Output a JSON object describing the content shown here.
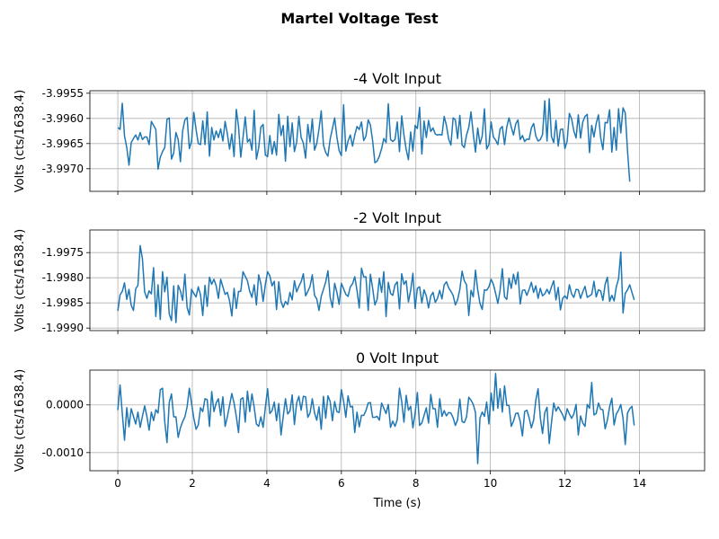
{
  "figure": {
    "suptitle": "Martel Voltage Test",
    "line_color": "#1f77b4",
    "grid_color": "#b0b0b0"
  },
  "chart_data": [
    {
      "type": "line",
      "title": "-4 Volt Input",
      "ylabel": "Volts (cts/1638.4)",
      "xlabel": "",
      "xlim": [
        -0.75,
        15.75
      ],
      "ylim": [
        -3.99745,
        -3.99545
      ],
      "xticks": [
        0,
        2,
        4,
        6,
        8,
        10,
        12,
        14
      ],
      "xtick_labels": [
        "",
        "",
        "",
        "",
        "",
        "",
        "",
        ""
      ],
      "yticks": [
        -3.9955,
        -3.996,
        -3.9965,
        -3.997
      ],
      "ytick_labels": [
        "-3.9955",
        "-3.9960",
        "-3.9965",
        "-3.9970"
      ],
      "grid": true,
      "x_start": 0,
      "x_step": 0.06,
      "values": [
        -3.99618,
        -3.99622,
        -3.9957,
        -3.99635,
        -3.99658,
        -3.99693,
        -3.99648,
        -3.9964,
        -3.99633,
        -3.99643,
        -3.99628,
        -3.99642,
        -3.99637,
        -3.99637,
        -3.99652,
        -3.99606,
        -3.99614,
        -3.99622,
        -3.99701,
        -3.99677,
        -3.99666,
        -3.99658,
        -3.99602,
        -3.99599,
        -3.99681,
        -3.99669,
        -3.99628,
        -3.99642,
        -3.99686,
        -3.99625,
        -3.99603,
        -3.99598,
        -3.9966,
        -3.99645,
        -3.99588,
        -3.99622,
        -3.9965,
        -3.99652,
        -3.99605,
        -3.99652,
        -3.99587,
        -3.99675,
        -3.99618,
        -3.99643,
        -3.99625,
        -3.99638,
        -3.99621,
        -3.99645,
        -3.99606,
        -3.99631,
        -3.99661,
        -3.99631,
        -3.99676,
        -3.99582,
        -3.99616,
        -3.99677,
        -3.99638,
        -3.99597,
        -3.99647,
        -3.99641,
        -3.99663,
        -3.99584,
        -3.99681,
        -3.99659,
        -3.99617,
        -3.99612,
        -3.99673,
        -3.99676,
        -3.99634,
        -3.99671,
        -3.99646,
        -3.99673,
        -3.99592,
        -3.99634,
        -3.99614,
        -3.99685,
        -3.99596,
        -3.99656,
        -3.99609,
        -3.99666,
        -3.99647,
        -3.99596,
        -3.99638,
        -3.99649,
        -3.99679,
        -3.99612,
        -3.99647,
        -3.99601,
        -3.99663,
        -3.9965,
        -3.99621,
        -3.99585,
        -3.99653,
        -3.99668,
        -3.99675,
        -3.99641,
        -3.9962,
        -3.99599,
        -3.99637,
        -3.99664,
        -3.99674,
        -3.99573,
        -3.99665,
        -3.99645,
        -3.99633,
        -3.99655,
        -3.99633,
        -3.99616,
        -3.99622,
        -3.99607,
        -3.99644,
        -3.99635,
        -3.99603,
        -3.99613,
        -3.99645,
        -3.99688,
        -3.99685,
        -3.99675,
        -3.9966,
        -3.9964,
        -3.99648,
        -3.99571,
        -3.99642,
        -3.99646,
        -3.99642,
        -3.99607,
        -3.99666,
        -3.99595,
        -3.99633,
        -3.99662,
        -3.99682,
        -3.99627,
        -3.99665,
        -3.99614,
        -3.9962,
        -3.99578,
        -3.99671,
        -3.99605,
        -3.99638,
        -3.99604,
        -3.99626,
        -3.99619,
        -3.99631,
        -3.99633,
        -3.99632,
        -3.99633,
        -3.99596,
        -3.99614,
        -3.99641,
        -3.99653,
        -3.99599,
        -3.99603,
        -3.9964,
        -3.99594,
        -3.99653,
        -3.99658,
        -3.99633,
        -3.99618,
        -3.99587,
        -3.99631,
        -3.99667,
        -3.99619,
        -3.99651,
        -3.99635,
        -3.99581,
        -3.99661,
        -3.99652,
        -3.99607,
        -3.99637,
        -3.99643,
        -3.99652,
        -3.99621,
        -3.99616,
        -3.99652,
        -3.99617,
        -3.99599,
        -3.99617,
        -3.99633,
        -3.99611,
        -3.99603,
        -3.99642,
        -3.99634,
        -3.99646,
        -3.99641,
        -3.99642,
        -3.99619,
        -3.9961,
        -3.99635,
        -3.99645,
        -3.99642,
        -3.99632,
        -3.99565,
        -3.99645,
        -3.99561,
        -3.99636,
        -3.99648,
        -3.99604,
        -3.99655,
        -3.99622,
        -3.99621,
        -3.9966,
        -3.99645,
        -3.9959,
        -3.99601,
        -3.99625,
        -3.99639,
        -3.99593,
        -3.99639,
        -3.99607,
        -3.99596,
        -3.99592,
        -3.99668,
        -3.99614,
        -3.99637,
        -3.9961,
        -3.99593,
        -3.99638,
        -3.99662,
        -3.99608,
        -3.99609,
        -3.99583,
        -3.99667,
        -3.99618,
        -3.99663,
        -3.99581,
        -3.99629,
        -3.99579,
        -3.99589,
        -3.99664,
        -3.99726
      ]
    },
    {
      "type": "line",
      "title": "-2 Volt Input",
      "ylabel": "Volts (cts/1638.4)",
      "xlabel": "",
      "xlim": [
        -0.75,
        15.75
      ],
      "ylim": [
        -1.99905,
        -1.99705
      ],
      "xticks": [
        0,
        2,
        4,
        6,
        8,
        10,
        12,
        14
      ],
      "xtick_labels": [
        "",
        "",
        "",
        "",
        "",
        "",
        "",
        ""
      ],
      "yticks": [
        -1.9975,
        -1.998,
        -1.9985,
        -1.999
      ],
      "ytick_labels": [
        "-1.9975",
        "-1.9980",
        "-1.9985",
        "-1.9990"
      ],
      "grid": true,
      "x_start": 0,
      "x_step": 0.06,
      "values": [
        -1.99866,
        -1.99834,
        -1.99827,
        -1.9981,
        -1.99843,
        -1.99823,
        -1.99855,
        -1.99865,
        -1.99822,
        -1.99815,
        -1.99736,
        -1.99762,
        -1.99828,
        -1.99841,
        -1.99826,
        -1.99832,
        -1.9978,
        -1.99877,
        -1.99814,
        -1.99883,
        -1.99788,
        -1.99828,
        -1.99799,
        -1.99872,
        -1.99885,
        -1.99816,
        -1.99889,
        -1.99815,
        -1.99826,
        -1.99845,
        -1.99793,
        -1.99859,
        -1.99874,
        -1.99823,
        -1.99831,
        -1.99838,
        -1.99818,
        -1.99834,
        -1.99875,
        -1.99815,
        -1.99857,
        -1.99799,
        -1.99813,
        -1.99803,
        -1.99816,
        -1.99841,
        -1.99803,
        -1.99818,
        -1.99833,
        -1.99829,
        -1.99846,
        -1.99876,
        -1.99821,
        -1.99861,
        -1.99827,
        -1.99827,
        -1.99788,
        -1.99797,
        -1.99806,
        -1.99827,
        -1.99839,
        -1.99814,
        -1.99854,
        -1.99794,
        -1.99812,
        -1.99847,
        -1.99813,
        -1.99788,
        -1.99796,
        -1.99816,
        -1.99807,
        -1.99863,
        -1.99808,
        -1.99847,
        -1.99859,
        -1.99847,
        -1.99853,
        -1.99829,
        -1.99844,
        -1.99806,
        -1.99828,
        -1.99817,
        -1.99808,
        -1.99792,
        -1.99836,
        -1.99827,
        -1.99817,
        -1.99794,
        -1.99835,
        -1.99842,
        -1.99865,
        -1.99837,
        -1.99823,
        -1.99808,
        -1.99786,
        -1.99839,
        -1.99859,
        -1.99811,
        -1.99829,
        -1.99853,
        -1.99811,
        -1.99822,
        -1.99833,
        -1.99837,
        -1.99818,
        -1.99812,
        -1.99798,
        -1.99825,
        -1.9986,
        -1.99781,
        -1.99798,
        -1.99798,
        -1.99865,
        -1.99793,
        -1.99821,
        -1.99854,
        -1.99843,
        -1.99801,
        -1.99829,
        -1.99788,
        -1.99877,
        -1.99809,
        -1.99831,
        -1.99835,
        -1.99814,
        -1.99808,
        -1.99862,
        -1.99792,
        -1.99813,
        -1.99806,
        -1.99848,
        -1.99825,
        -1.99791,
        -1.99861,
        -1.99821,
        -1.99818,
        -1.9985,
        -1.99824,
        -1.99836,
        -1.9986,
        -1.99836,
        -1.99829,
        -1.99849,
        -1.99841,
        -1.99825,
        -1.99842,
        -1.99814,
        -1.99808,
        -1.9982,
        -1.99827,
        -1.99835,
        -1.99854,
        -1.99844,
        -1.99823,
        -1.99787,
        -1.99806,
        -1.99814,
        -1.99875,
        -1.99825,
        -1.99838,
        -1.99785,
        -1.99824,
        -1.99851,
        -1.99863,
        -1.99824,
        -1.99825,
        -1.99818,
        -1.99803,
        -1.99813,
        -1.99831,
        -1.99851,
        -1.99825,
        -1.99782,
        -1.99838,
        -1.99843,
        -1.99801,
        -1.99821,
        -1.99793,
        -1.99813,
        -1.99789,
        -1.99852,
        -1.99825,
        -1.99824,
        -1.99835,
        -1.99823,
        -1.99809,
        -1.99829,
        -1.99816,
        -1.99841,
        -1.99821,
        -1.99836,
        -1.99832,
        -1.99823,
        -1.99832,
        -1.99818,
        -1.99806,
        -1.99844,
        -1.99819,
        -1.99864,
        -1.99841,
        -1.99836,
        -1.99842,
        -1.99814,
        -1.99832,
        -1.99839,
        -1.99823,
        -1.99824,
        -1.99841,
        -1.99828,
        -1.99817,
        -1.99839,
        -1.99836,
        -1.99833,
        -1.99807,
        -1.99838,
        -1.99824,
        -1.99826,
        -1.99845,
        -1.99813,
        -1.99799,
        -1.99847,
        -1.99835,
        -1.99846,
        -1.99818,
        -1.99802,
        -1.99749,
        -1.9987,
        -1.99831,
        -1.99824,
        -1.99814,
        -1.99829,
        -1.99844
      ]
    },
    {
      "type": "line",
      "title": "0 Volt Input",
      "ylabel": "Volts (cts/1638.4)",
      "xlabel": "Time (s)",
      "xlim": [
        -0.75,
        15.75
      ],
      "ylim": [
        -0.00138,
        0.00073
      ],
      "xticks": [
        0,
        2,
        4,
        6,
        8,
        10,
        12,
        14
      ],
      "xtick_labels": [
        "0",
        "2",
        "4",
        "6",
        "8",
        "10",
        "12",
        "14"
      ],
      "yticks": [
        0.0,
        -0.001
      ],
      "ytick_labels": [
        "0.0000",
        "-0.0010"
      ],
      "grid": true,
      "x_start": 0,
      "x_step": 0.06,
      "values": [
        -0.00011,
        0.00042,
        -0.00018,
        -0.00074,
        -6e-05,
        -0.00046,
        -8e-05,
        -0.00024,
        -0.0004,
        -0.00015,
        -0.00047,
        -0.00024,
        -2e-05,
        -0.00024,
        -0.00053,
        -0.00015,
        -0.00033,
        -0.0001,
        -0.00017,
        0.00032,
        0.00035,
        -0.00035,
        -0.00079,
        5e-05,
        0.00023,
        -0.00025,
        -0.00025,
        -0.00068,
        -0.00048,
        -0.00035,
        -0.00025,
        -4e-05,
        0.00035,
        3e-05,
        -0.00028,
        -0.00051,
        -0.00042,
        -6e-05,
        -0.00014,
        0.00013,
        0.00011,
        -0.00045,
        0.00028,
        -0.00014,
        4e-05,
        0.00013,
        -0.00022,
        0.00017,
        -0.00045,
        -0.00025,
        -1e-05,
        0.00024,
        4e-05,
        -0.00024,
        -0.00058,
        0.00012,
        0.00015,
        -0.00036,
        0.00029,
        -0.00014,
        0.00023,
        -5e-05,
        -0.0004,
        -0.00045,
        -0.00025,
        -0.00047,
        -5e-05,
        0.00034,
        -0.00018,
        -0.00012,
        6e-05,
        -0.00033,
        3e-05,
        -0.00063,
        -0.00024,
        0.00013,
        -0.00019,
        -0.00013,
        0.00021,
        -0.00041,
        4e-05,
        0.00018,
        -0.00011,
        0.00018,
        0.00017,
        -0.00026,
        -0.00017,
        0.00013,
        -0.00017,
        -0.00032,
        -4e-05,
        -0.00051,
        0.00018,
        -0.00028,
        0.00019,
        7e-05,
        -0.00033,
        7e-05,
        -0.00014,
        -0.00016,
        0.00032,
        8e-05,
        -0.00026,
        0.00019,
        -4e-05,
        -3e-05,
        -0.00058,
        -0.00015,
        -0.00046,
        -0.00022,
        -0.00022,
        -0.00012,
        4e-05,
        5e-05,
        -0.00026,
        -0.00026,
        -0.00024,
        -0.00032,
        4e-05,
        -7e-05,
        -0.00018,
        1e-05,
        -0.00047,
        -0.00034,
        -0.00045,
        -0.00031,
        0.00035,
        7e-05,
        -0.00036,
        0.0002,
        -0.00011,
        -3e-05,
        -0.00048,
        -0.00017,
        0.00026,
        -0.00043,
        -0.00038,
        -0.00022,
        -6e-05,
        -0.00038,
        0.00022,
        -8e-05,
        -8e-05,
        -0.00047,
        0.00013,
        -0.00024,
        -0.00012,
        -0.00023,
        -0.00016,
        -0.00017,
        -0.00027,
        -0.00043,
        -0.00031,
        0.00012,
        -0.00035,
        -0.00037,
        -0.00025,
        0.00016,
        0.0001,
        1e-05,
        -0.00016,
        -0.00123,
        -0.00028,
        -0.00015,
        -0.00024,
        6e-05,
        -0.0004,
        0.00025,
        -0.00012,
        0.00066,
        -7e-05,
        0.00034,
        -0.00015,
        0.0004,
        -1e-05,
        -1e-05,
        -0.00045,
        -0.00034,
        -0.00018,
        -0.00017,
        -0.00034,
        -0.00065,
        -0.00014,
        -0.00011,
        -0.00027,
        -0.00048,
        -0.00032,
        0.0001,
        0.00034,
        -0.00027,
        -0.0006,
        -0.00016,
        -5e-05,
        -0.00081,
        -0.00037,
        4e-05,
        -0.00013,
        -4e-05,
        -0.00012,
        -0.00021,
        -0.00033,
        -8e-05,
        -0.00019,
        -0.00028,
        -0.00019,
        1e-05,
        -0.00063,
        -0.00023,
        -0.00038,
        -0.00045,
        1e-05,
        -7e-05,
        0.00047,
        -0.00021,
        -0.00018,
        4e-05,
        -9e-05,
        -0.0001,
        -0.0005,
        -0.00032,
        -4e-05,
        0.00014,
        -0.00042,
        -0.00019,
        -0.00011,
        1e-05,
        -0.00028,
        -0.00083,
        -0.00017,
        -8e-05,
        -3e-05,
        -0.00043
      ]
    }
  ]
}
